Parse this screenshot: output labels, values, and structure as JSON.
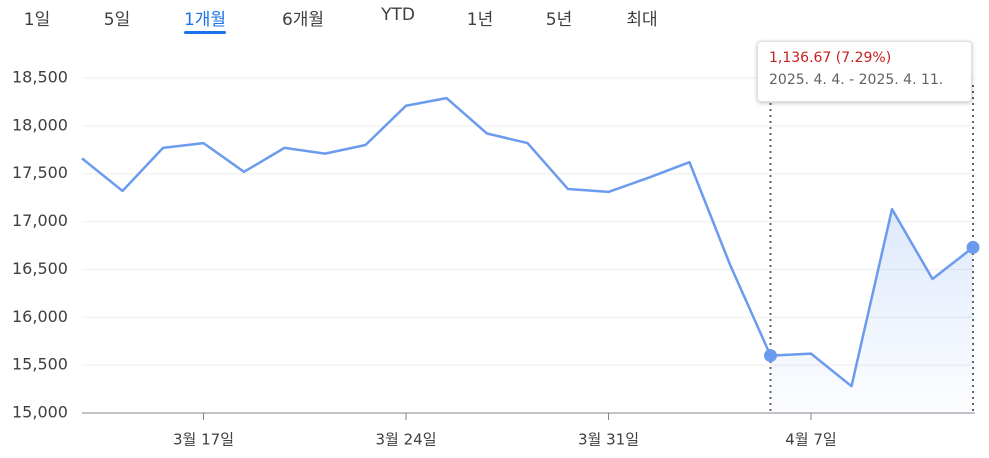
{
  "tabs": [
    "1일",
    "5일",
    "1개월",
    "6개월",
    "YTD",
    "1년",
    "5년",
    "최대"
  ],
  "active_tab": 2,
  "chart_data": {
    "type": "line",
    "categories": [
      null,
      null,
      null,
      "3월 17일",
      null,
      null,
      null,
      null,
      "3월 24일",
      null,
      null,
      null,
      null,
      "3월 31일",
      null,
      null,
      null,
      null,
      "4월 7일",
      null,
      null,
      null,
      null
    ],
    "series": [
      {
        "color": "#6b9bee",
        "values": [
          17660,
          17320,
          17770,
          17820,
          17520,
          17770,
          17710,
          17800,
          18210,
          18290,
          17920,
          17820,
          17340,
          17310,
          17460,
          17620,
          16550,
          15600,
          15620,
          15280,
          17130,
          16400,
          16730
        ]
      }
    ],
    "ylim": [
      15000,
      18500
    ],
    "yticks": [
      {
        "value": 15000,
        "label": "15,000"
      },
      {
        "value": 15500,
        "label": "15,500"
      },
      {
        "value": 16000,
        "label": "16,000"
      },
      {
        "value": 16500,
        "label": "16,500"
      },
      {
        "value": 17000,
        "label": "17,000"
      },
      {
        "value": 17500,
        "label": "17,500"
      },
      {
        "value": 18000,
        "label": "18,000"
      },
      {
        "value": 18500,
        "label": "18,500"
      }
    ],
    "grid": true,
    "highlight": {
      "start": 17,
      "end": 22
    },
    "tooltip": {
      "change": "1,136.67 (7.29%)",
      "range": "2025. 4. 4. - 2025. 4. 11."
    }
  }
}
